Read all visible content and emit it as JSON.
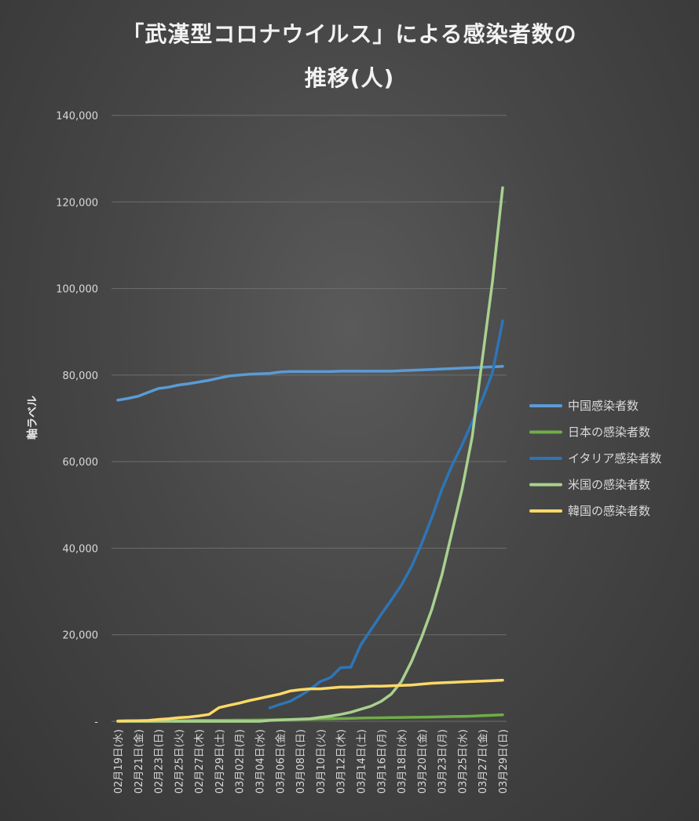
{
  "chart_data": {
    "type": "line",
    "title_line1": "「武漢型コロナウイルス」による感染者数の",
    "title_line2": "推移(人)",
    "ylabel": "軸ラベル",
    "ylim": [
      0,
      140000
    ],
    "yticks": [
      0,
      20000,
      40000,
      60000,
      80000,
      100000,
      120000,
      140000
    ],
    "ytick_labels": [
      "-",
      "20,000",
      "40,000",
      "60,000",
      "80,000",
      "100,000",
      "120,000",
      "140,000"
    ],
    "grid": true,
    "legend_position": "right",
    "x": [
      "02月19日(水)",
      "02月20日(木)",
      "02月21日(金)",
      "02月22日(土)",
      "02月23日(日)",
      "02月24日(月)",
      "02月25日(火)",
      "02月26日(水)",
      "02月27日(木)",
      "02月28日(金)",
      "02月29日(土)",
      "03月01日(日)",
      "03月02日(月)",
      "03月03日(火)",
      "03月04日(水)",
      "03月05日(木)",
      "03月06日(金)",
      "03月07日(土)",
      "03月08日(日)",
      "03月09日(月)",
      "03月10日(火)",
      "03月11日(水)",
      "03月12日(木)",
      "03月13日(金)",
      "03月14日(土)",
      "03月15日(日)",
      "03月16日(月)",
      "03月17日(火)",
      "03月18日(水)",
      "03月19日(木)",
      "03月20日(金)",
      "03月21日(土)",
      "03月23日(月)",
      "03月24日(火)",
      "03月25日(水)",
      "03月26日(木)",
      "03月27日(金)",
      "03月28日(土)",
      "03月29日(日)"
    ],
    "xtick_labels": [
      "02月19日(水)",
      "02月21日(金)",
      "02月23日(日)",
      "02月25日(火)",
      "02月27日(木)",
      "02月29日(土)",
      "03月02日(月)",
      "03月04日(水)",
      "03月06日(金)",
      "03月08日(日)",
      "03月10日(火)",
      "03月12日(木)",
      "03月14日(土)",
      "03月16日(月)",
      "03月18日(水)",
      "03月20日(金)",
      "03月23日(月)",
      "03月25日(水)",
      "03月27日(金)",
      "03月29日(日)"
    ],
    "series": [
      {
        "name": "中国感染者数",
        "color": "#5b9bd5",
        "values": [
          74200,
          74600,
          75100,
          76000,
          76900,
          77200,
          77700,
          78000,
          78400,
          78800,
          79300,
          79800,
          80000,
          80200,
          80300,
          80400,
          80700,
          80800,
          80800,
          80800,
          80800,
          80800,
          80900,
          80900,
          80900,
          80900,
          80900,
          80900,
          81000,
          81100,
          81200,
          81300,
          81400,
          81500,
          81600,
          81700,
          81800,
          81900,
          82000
        ]
      },
      {
        "name": "日本の感染者数",
        "color": "#70ad47",
        "values": [
          90,
          100,
          110,
          120,
          130,
          140,
          160,
          180,
          210,
          230,
          240,
          250,
          270,
          280,
          290,
          320,
          360,
          410,
          460,
          500,
          560,
          600,
          640,
          680,
          740,
          790,
          820,
          860,
          890,
          920,
          960,
          1000,
          1050,
          1100,
          1150,
          1200,
          1300,
          1400,
          1500
        ]
      },
      {
        "name": "イタリア感染者数",
        "color": "#2e75b6",
        "values": [
          null,
          null,
          null,
          null,
          null,
          null,
          null,
          null,
          null,
          null,
          null,
          null,
          null,
          null,
          null,
          3100,
          3900,
          4600,
          5900,
          7400,
          9200,
          10100,
          12400,
          12500,
          17700,
          21200,
          24700,
          28000,
          31500,
          35700,
          41000,
          47000,
          53600,
          59100,
          63900,
          69200,
          74400,
          80600,
          92500
        ]
      },
      {
        "name": "米国の感染者数",
        "color": "#a9d18e",
        "values": [
          0,
          0,
          0,
          0,
          0,
          0,
          0,
          0,
          0,
          0,
          0,
          0,
          0,
          0,
          0,
          200,
          300,
          400,
          500,
          600,
          900,
          1200,
          1600,
          2100,
          2800,
          3500,
          4600,
          6300,
          9200,
          13800,
          19400,
          25800,
          33800,
          43700,
          53700,
          65800,
          83800,
          101700,
          123300
        ]
      },
      {
        "name": "韓国の感染者数",
        "color": "#ffd966",
        "values": [
          50,
          100,
          150,
          200,
          430,
          600,
          830,
          980,
          1260,
          1600,
          3150,
          3700,
          4200,
          4800,
          5300,
          5800,
          6300,
          7000,
          7300,
          7500,
          7500,
          7700,
          7900,
          7900,
          8000,
          8100,
          8100,
          8200,
          8300,
          8400,
          8600,
          8800,
          8900,
          9000,
          9100,
          9200,
          9300,
          9400,
          9500
        ]
      }
    ]
  }
}
